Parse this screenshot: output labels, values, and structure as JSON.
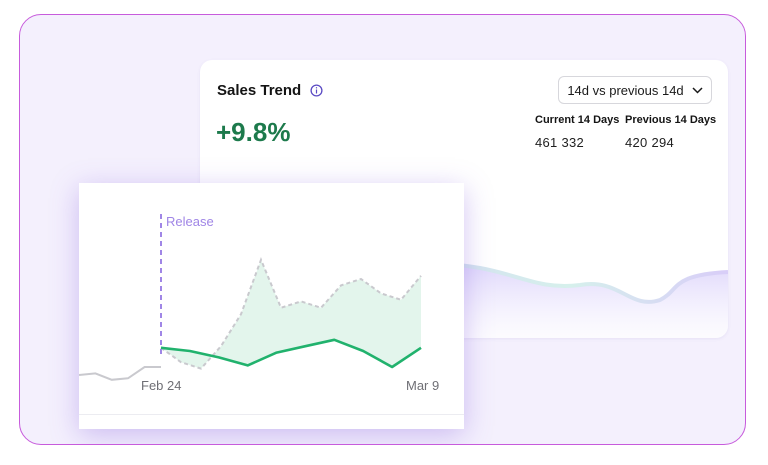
{
  "card": {
    "title": "Sales Trend",
    "change": "+9.8%",
    "range_selector": "14d vs previous 14d",
    "current_label": "Current 14 Days",
    "current_value": "461 332",
    "previous_label": "Previous 14 Days",
    "previous_value": "420 294"
  },
  "chart_data": {
    "type": "line",
    "annotation": "Release",
    "x_ticks": [
      "Feb 24",
      "Mar 9"
    ],
    "series": [
      {
        "values": [
          0.78,
          0.87,
          0.91,
          0.77,
          0.57,
          0.23,
          0.53,
          0.49,
          0.53,
          0.39,
          0.35,
          0.44,
          0.48,
          0.33
        ]
      },
      {
        "values": [
          0.78,
          0.8,
          0.84,
          0.89,
          0.81,
          0.77,
          0.73,
          0.8,
          0.9,
          0.78
        ]
      },
      {
        "values": [
          0.95,
          0.94,
          0.98,
          0.97,
          0.9,
          0.9
        ]
      }
    ],
    "colors": {
      "current": "#21b26d",
      "current_fill": "#e3f5ec",
      "previous": "#c9c9ce",
      "release_line": "#a086e6"
    }
  }
}
